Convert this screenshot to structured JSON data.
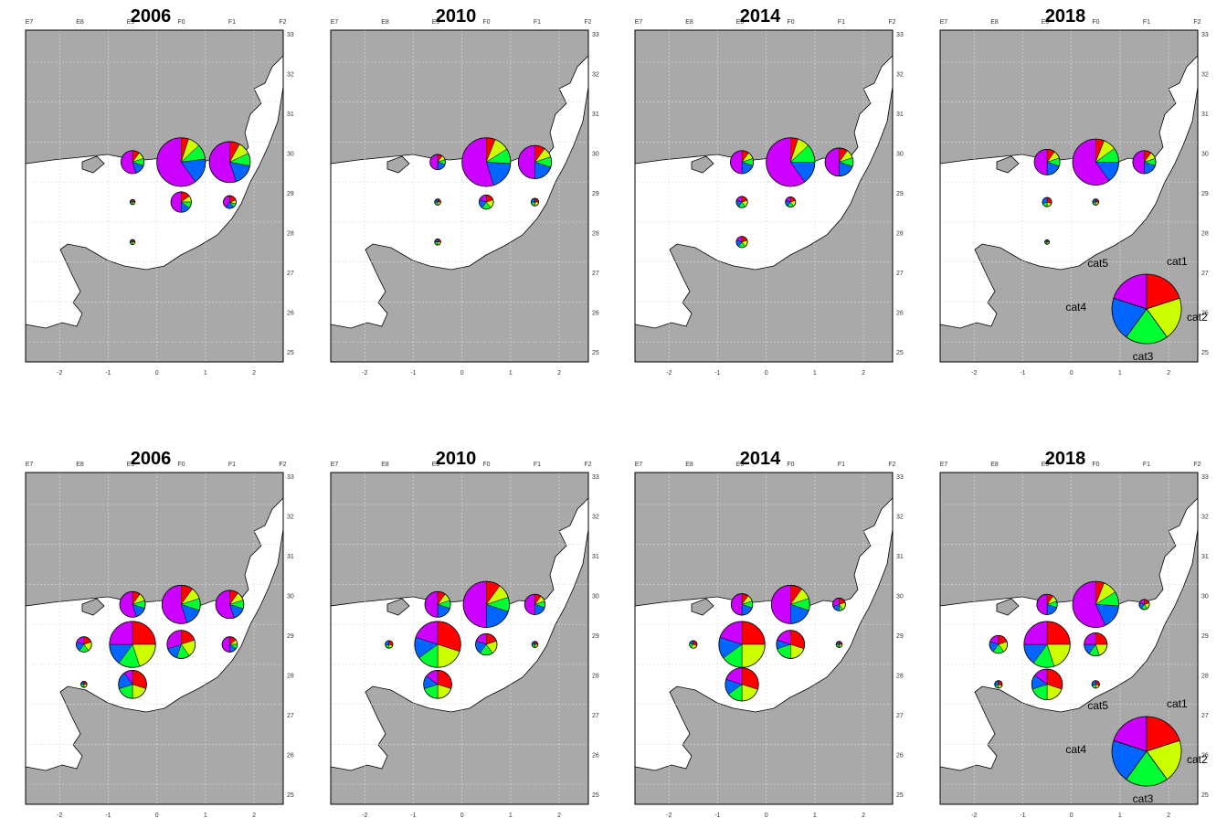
{
  "figure": {
    "map_axes": {
      "top_labels": [
        "E7",
        "E8",
        "E9",
        "F0",
        "F1",
        "F2"
      ],
      "right_labels": [
        "33",
        "32",
        "31",
        "30",
        "29",
        "28",
        "27",
        "26",
        "25"
      ],
      "bottom_labels": [
        "-2",
        "-1",
        "0",
        "1",
        "2"
      ]
    },
    "colors": {
      "sea": "#ffffff",
      "land": "#a9a9a9",
      "outline": "#000000",
      "cat1": "#ff0000",
      "cat2": "#ccff00",
      "cat3": "#00ff33",
      "cat4": "#0066ff",
      "cat5": "#cc00ff"
    },
    "legend": {
      "labels": [
        "cat1",
        "cat2",
        "cat3",
        "cat4",
        "cat5"
      ],
      "placement": "bottom-right of the last panel in each row"
    }
  },
  "chart_data": [
    {
      "type": "pie-map",
      "row": 1,
      "title": "2006",
      "stations": [
        {
          "lon": -0.5,
          "lat": 30,
          "size": 0.45,
          "shares": [
            0.1,
            0.1,
            0.1,
            0.15,
            0.55
          ]
        },
        {
          "lon": 0.5,
          "lat": 30,
          "size": 0.95,
          "shares": [
            0.05,
            0.08,
            0.1,
            0.17,
            0.6
          ]
        },
        {
          "lon": 1.5,
          "lat": 30,
          "size": 0.8,
          "shares": [
            0.08,
            0.1,
            0.1,
            0.17,
            0.55
          ]
        },
        {
          "lon": 0.5,
          "lat": 29,
          "size": 0.4,
          "shares": [
            0.15,
            0.1,
            0.1,
            0.15,
            0.5
          ]
        },
        {
          "lon": 1.5,
          "lat": 29,
          "size": 0.25,
          "shares": [
            0.2,
            0.1,
            0.1,
            0.2,
            0.4
          ]
        },
        {
          "lon": -0.5,
          "lat": 29,
          "size": 0.1,
          "shares": [
            0.25,
            0.25,
            0.25,
            0.25,
            0
          ]
        },
        {
          "lon": -0.5,
          "lat": 28,
          "size": 0.1,
          "shares": [
            0.25,
            0.25,
            0.25,
            0.25,
            0
          ]
        }
      ]
    },
    {
      "type": "pie-map",
      "row": 1,
      "title": "2010",
      "stations": [
        {
          "lon": -0.5,
          "lat": 30,
          "size": 0.3,
          "shares": [
            0.1,
            0.1,
            0.1,
            0.2,
            0.5
          ]
        },
        {
          "lon": 0.5,
          "lat": 30,
          "size": 0.95,
          "shares": [
            0.06,
            0.1,
            0.1,
            0.19,
            0.55
          ]
        },
        {
          "lon": 1.5,
          "lat": 30,
          "size": 0.65,
          "shares": [
            0.1,
            0.1,
            0.1,
            0.2,
            0.5
          ]
        },
        {
          "lon": 0.5,
          "lat": 29,
          "size": 0.28,
          "shares": [
            0.2,
            0.2,
            0.2,
            0.2,
            0.2
          ]
        },
        {
          "lon": 1.5,
          "lat": 29,
          "size": 0.15,
          "shares": [
            0.25,
            0.25,
            0.25,
            0.25,
            0
          ]
        },
        {
          "lon": -0.5,
          "lat": 29,
          "size": 0.12,
          "shares": [
            0.25,
            0.25,
            0.25,
            0.25,
            0
          ]
        },
        {
          "lon": -0.5,
          "lat": 28,
          "size": 0.12,
          "shares": [
            0.25,
            0.25,
            0.25,
            0.25,
            0
          ]
        }
      ]
    },
    {
      "type": "pie-map",
      "row": 1,
      "title": "2014",
      "stations": [
        {
          "lon": -0.5,
          "lat": 30,
          "size": 0.45,
          "shares": [
            0.1,
            0.1,
            0.1,
            0.2,
            0.5
          ]
        },
        {
          "lon": 0.5,
          "lat": 30,
          "size": 0.95,
          "shares": [
            0.05,
            0.08,
            0.12,
            0.15,
            0.6
          ]
        },
        {
          "lon": 1.5,
          "lat": 30,
          "size": 0.55,
          "shares": [
            0.1,
            0.1,
            0.1,
            0.2,
            0.5
          ]
        },
        {
          "lon": -0.5,
          "lat": 29,
          "size": 0.22,
          "shares": [
            0.2,
            0.2,
            0.2,
            0.2,
            0.2
          ]
        },
        {
          "lon": 0.5,
          "lat": 29,
          "size": 0.2,
          "shares": [
            0.2,
            0.2,
            0.2,
            0.2,
            0.2
          ]
        },
        {
          "lon": -0.5,
          "lat": 28,
          "size": 0.22,
          "shares": [
            0.2,
            0.2,
            0.2,
            0.2,
            0.2
          ]
        }
      ]
    },
    {
      "type": "pie-map",
      "row": 1,
      "title": "2018",
      "stations": [
        {
          "lon": -0.5,
          "lat": 30,
          "size": 0.5,
          "shares": [
            0.1,
            0.1,
            0.1,
            0.2,
            0.5
          ]
        },
        {
          "lon": 0.5,
          "lat": 30,
          "size": 0.9,
          "shares": [
            0.06,
            0.09,
            0.1,
            0.15,
            0.6
          ]
        },
        {
          "lon": 1.5,
          "lat": 30,
          "size": 0.45,
          "shares": [
            0.1,
            0.1,
            0.1,
            0.2,
            0.5
          ]
        },
        {
          "lon": -0.5,
          "lat": 29,
          "size": 0.18,
          "shares": [
            0.3,
            0.2,
            0.2,
            0.3,
            0
          ]
        },
        {
          "lon": 0.5,
          "lat": 29,
          "size": 0.12,
          "shares": [
            0.25,
            0.25,
            0.25,
            0.25,
            0
          ]
        },
        {
          "lon": -0.5,
          "lat": 28,
          "size": 0.06,
          "shares": [
            0.25,
            0.25,
            0.25,
            0.25,
            0
          ]
        }
      ]
    },
    {
      "type": "pie-map",
      "row": 2,
      "title": "2006",
      "stations": [
        {
          "lon": -0.5,
          "lat": 30,
          "size": 0.5,
          "shares": [
            0.1,
            0.1,
            0.1,
            0.15,
            0.55
          ]
        },
        {
          "lon": 0.5,
          "lat": 30,
          "size": 0.75,
          "shares": [
            0.1,
            0.1,
            0.1,
            0.15,
            0.55
          ]
        },
        {
          "lon": 1.5,
          "lat": 30,
          "size": 0.55,
          "shares": [
            0.1,
            0.1,
            0.1,
            0.15,
            0.55
          ]
        },
        {
          "lon": -1.5,
          "lat": 29,
          "size": 0.3,
          "shares": [
            0.2,
            0.2,
            0.2,
            0.2,
            0.2
          ]
        },
        {
          "lon": -0.5,
          "lat": 29,
          "size": 0.9,
          "shares": [
            0.25,
            0.2,
            0.15,
            0.15,
            0.25
          ]
        },
        {
          "lon": 0.5,
          "lat": 29,
          "size": 0.55,
          "shares": [
            0.2,
            0.2,
            0.15,
            0.15,
            0.3
          ]
        },
        {
          "lon": 1.5,
          "lat": 29,
          "size": 0.3,
          "shares": [
            0.15,
            0.1,
            0.1,
            0.15,
            0.5
          ]
        },
        {
          "lon": -0.5,
          "lat": 28,
          "size": 0.55,
          "shares": [
            0.3,
            0.2,
            0.2,
            0.2,
            0.1
          ]
        },
        {
          "lon": -1.5,
          "lat": 28,
          "size": 0.12,
          "shares": [
            0.25,
            0.25,
            0.25,
            0.25,
            0
          ]
        }
      ]
    },
    {
      "type": "pie-map",
      "row": 2,
      "title": "2010",
      "stations": [
        {
          "lon": -0.5,
          "lat": 30,
          "size": 0.5,
          "shares": [
            0.1,
            0.1,
            0.1,
            0.2,
            0.5
          ]
        },
        {
          "lon": 0.5,
          "lat": 30,
          "size": 0.9,
          "shares": [
            0.1,
            0.1,
            0.1,
            0.2,
            0.5
          ]
        },
        {
          "lon": 1.5,
          "lat": 30,
          "size": 0.4,
          "shares": [
            0.1,
            0.1,
            0.1,
            0.2,
            0.5
          ]
        },
        {
          "lon": -1.5,
          "lat": 29,
          "size": 0.15,
          "shares": [
            0.3,
            0.2,
            0.2,
            0.3,
            0
          ]
        },
        {
          "lon": -0.5,
          "lat": 29,
          "size": 0.9,
          "shares": [
            0.3,
            0.2,
            0.15,
            0.15,
            0.2
          ]
        },
        {
          "lon": 0.5,
          "lat": 29,
          "size": 0.42,
          "shares": [
            0.2,
            0.2,
            0.2,
            0.2,
            0.2
          ]
        },
        {
          "lon": 1.5,
          "lat": 29,
          "size": 0.12,
          "shares": [
            0.25,
            0.25,
            0.25,
            0.25,
            0
          ]
        },
        {
          "lon": -0.5,
          "lat": 28,
          "size": 0.55,
          "shares": [
            0.3,
            0.2,
            0.2,
            0.15,
            0.15
          ]
        }
      ]
    },
    {
      "type": "pie-map",
      "row": 2,
      "title": "2014",
      "stations": [
        {
          "lon": -0.5,
          "lat": 30,
          "size": 0.42,
          "shares": [
            0.1,
            0.1,
            0.1,
            0.2,
            0.5
          ]
        },
        {
          "lon": 0.5,
          "lat": 30,
          "size": 0.75,
          "shares": [
            0.1,
            0.1,
            0.1,
            0.2,
            0.5
          ]
        },
        {
          "lon": 1.5,
          "lat": 30,
          "size": 0.25,
          "shares": [
            0.2,
            0.2,
            0.1,
            0.2,
            0.3
          ]
        },
        {
          "lon": -1.5,
          "lat": 29,
          "size": 0.15,
          "shares": [
            0.3,
            0.3,
            0.2,
            0.2,
            0
          ]
        },
        {
          "lon": -0.5,
          "lat": 29,
          "size": 0.9,
          "shares": [
            0.25,
            0.25,
            0.15,
            0.15,
            0.2
          ]
        },
        {
          "lon": 0.5,
          "lat": 29,
          "size": 0.55,
          "shares": [
            0.3,
            0.2,
            0.2,
            0.1,
            0.2
          ]
        },
        {
          "lon": 1.5,
          "lat": 29,
          "size": 0.12,
          "shares": [
            0.25,
            0.25,
            0.25,
            0.25,
            0
          ]
        },
        {
          "lon": -0.5,
          "lat": 28,
          "size": 0.65,
          "shares": [
            0.3,
            0.2,
            0.15,
            0.15,
            0.2
          ]
        }
      ]
    },
    {
      "type": "pie-map",
      "row": 2,
      "title": "2018",
      "stations": [
        {
          "lon": -0.5,
          "lat": 30,
          "size": 0.4,
          "shares": [
            0.1,
            0.1,
            0.1,
            0.2,
            0.5
          ]
        },
        {
          "lon": 0.5,
          "lat": 30,
          "size": 0.9,
          "shares": [
            0.06,
            0.1,
            0.1,
            0.17,
            0.57
          ]
        },
        {
          "lon": 1.5,
          "lat": 30,
          "size": 0.2,
          "shares": [
            0.2,
            0.2,
            0.2,
            0.2,
            0.2
          ]
        },
        {
          "lon": -1.5,
          "lat": 29,
          "size": 0.35,
          "shares": [
            0.2,
            0.2,
            0.2,
            0.2,
            0.2
          ]
        },
        {
          "lon": -0.5,
          "lat": 29,
          "size": 0.9,
          "shares": [
            0.25,
            0.2,
            0.15,
            0.15,
            0.25
          ]
        },
        {
          "lon": 0.5,
          "lat": 29,
          "size": 0.45,
          "shares": [
            0.25,
            0.2,
            0.15,
            0.15,
            0.25
          ]
        },
        {
          "lon": -0.5,
          "lat": 28,
          "size": 0.6,
          "shares": [
            0.3,
            0.2,
            0.2,
            0.15,
            0.15
          ]
        },
        {
          "lon": -1.5,
          "lat": 28,
          "size": 0.15,
          "shares": [
            0.3,
            0.2,
            0.2,
            0.3,
            0
          ]
        },
        {
          "lon": 0.5,
          "lat": 28,
          "size": 0.15,
          "shares": [
            0.3,
            0.2,
            0.2,
            0.3,
            0
          ]
        }
      ]
    }
  ]
}
